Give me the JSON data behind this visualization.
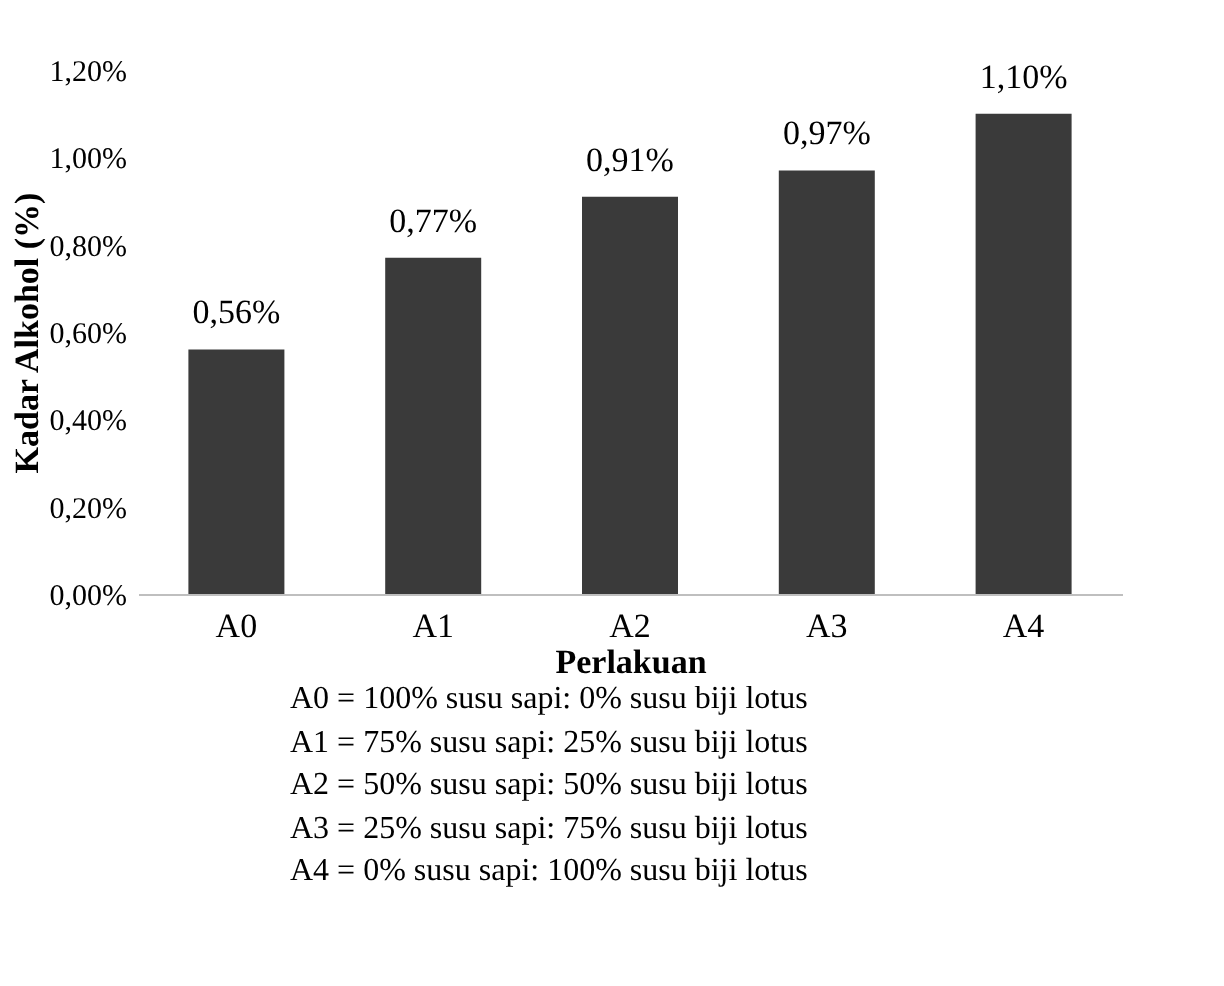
{
  "chart_data": {
    "type": "bar",
    "xlabel": "Perlakuan",
    "ylabel": "Kadar Alkohol (%)",
    "categories": [
      "A0",
      "A1",
      "A2",
      "A3",
      "A4"
    ],
    "values": [
      0.56,
      0.77,
      0.91,
      0.97,
      1.1
    ],
    "value_labels": [
      "0,56%",
      "0,77%",
      "0,91%",
      "0,97%",
      "1,10%"
    ],
    "color": "#3a3a3a",
    "ylim": [
      0,
      1.2
    ],
    "yticks": [
      {
        "value": 0,
        "label": "0,00%"
      },
      {
        "value": 0.2,
        "label": "0,20%"
      },
      {
        "value": 0.4,
        "label": "0,40%"
      },
      {
        "value": 0.6,
        "label": "0,60%"
      },
      {
        "value": 0.8,
        "label": "0,80%"
      },
      {
        "value": 1.0,
        "label": "1,00%"
      },
      {
        "value": 1.2,
        "label": "1,20%"
      }
    ],
    "annotations": [
      "A0 = 100% susu sapi: 0% susu biji lotus",
      "A1 = 75% susu sapi: 25% susu biji lotus",
      "A2 = 50% susu sapi: 50% susu biji lotus",
      "A3 = 25% susu sapi: 75% susu biji lotus",
      "A4 = 0% susu sapi: 100% susu biji lotus"
    ]
  }
}
